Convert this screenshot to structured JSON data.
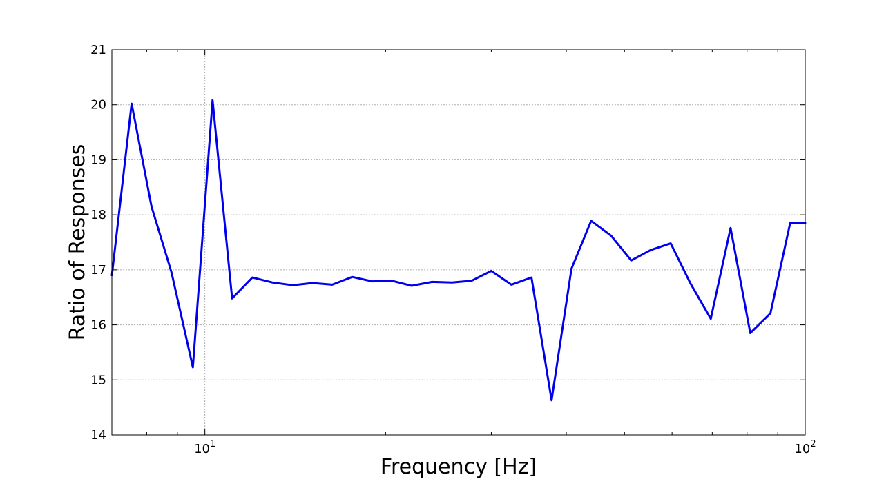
{
  "chart_data": {
    "type": "line",
    "title": "",
    "xlabel": "Frequency [Hz]",
    "ylabel": "Ratio of Responses",
    "xscale": "log",
    "xlim": [
      7.0,
      100
    ],
    "ylim": [
      14,
      21
    ],
    "grid": true,
    "x_major_ticks": [
      10,
      100
    ],
    "x_major_tick_labels": [
      {
        "base": "10",
        "exp": "1"
      },
      {
        "base": "10",
        "exp": "2"
      }
    ],
    "y_ticks": [
      14,
      15,
      16,
      17,
      18,
      19,
      20,
      21
    ],
    "y_tick_labels": [
      "14",
      "15",
      "16",
      "17",
      "18",
      "19",
      "20",
      "21"
    ],
    "line_color": "#0000ee",
    "series": [
      {
        "x": [
          7.0,
          7.55,
          8.15,
          8.8,
          9.55,
          10.3,
          11.1,
          12.0,
          12.95,
          14.0,
          15.1,
          16.3,
          17.6,
          19.0,
          20.5,
          22.1,
          23.9,
          25.8,
          27.8,
          30.0,
          32.4,
          35.0,
          37.8,
          40.8,
          44.0,
          47.5,
          51.3,
          55.3,
          59.7,
          64.4,
          69.6,
          75.1,
          81.0,
          87.5,
          94.4,
          100.0
        ],
        "y": [
          16.9,
          20.02,
          18.15,
          16.95,
          15.23,
          20.08,
          16.48,
          16.86,
          16.77,
          16.72,
          16.76,
          16.73,
          16.87,
          16.79,
          16.8,
          16.71,
          16.78,
          16.77,
          16.8,
          16.98,
          16.73,
          16.86,
          14.63,
          17.02,
          17.89,
          17.62,
          17.17,
          17.36,
          17.48,
          16.75,
          16.11,
          17.76,
          15.85,
          16.21,
          17.85,
          17.85
        ]
      }
    ]
  }
}
